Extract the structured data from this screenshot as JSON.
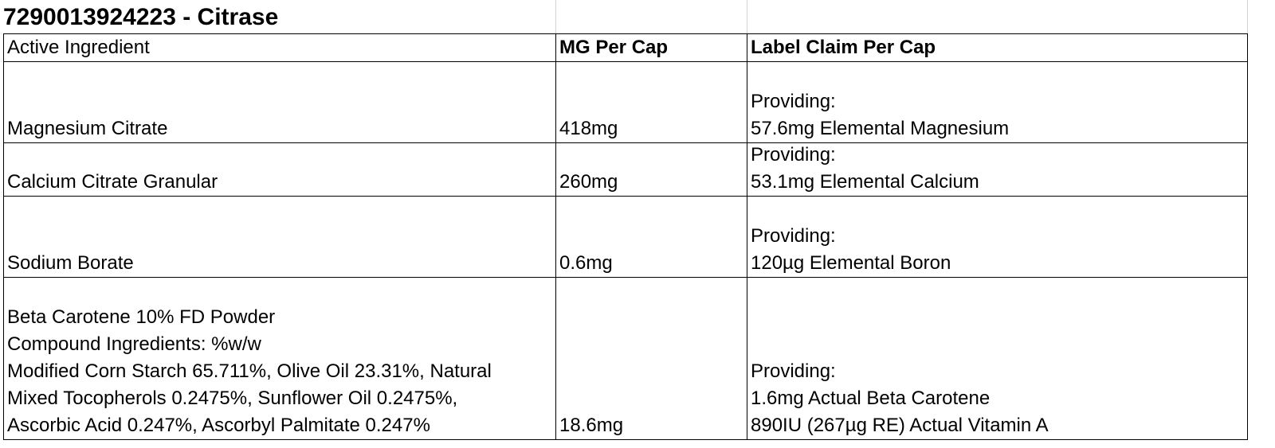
{
  "title": "7290013924223 - Citrase",
  "table": {
    "header": [
      "Active Ingredient",
      "MG Per Cap",
      "Label Claim Per Cap"
    ],
    "rows": [
      [
        [
          "Magnesium Citrate"
        ],
        [
          "418mg"
        ],
        [
          "Providing:",
          "57.6mg Elemental Magnesium"
        ]
      ],
      [
        [
          "Calcium Citrate Granular"
        ],
        [
          "260mg"
        ],
        [
          "Providing:",
          "53.1mg Elemental Calcium"
        ]
      ],
      [
        [
          "Sodium Borate"
        ],
        [
          "0.6mg"
        ],
        [
          "Providing:",
          "120µg Elemental Boron"
        ]
      ],
      [
        [
          "Beta Carotene 10% FD Powder",
          "Compound Ingredients: %w/w",
          "Modified Corn Starch 65.711%, Olive Oil 23.31%, Natural",
          "Mixed Tocopherols 0.2475%, Sunflower Oil 0.2475%,",
          "Ascorbic Acid 0.247%, Ascorbyl Palmitate 0.247%"
        ],
        [
          "18.6mg"
        ],
        [
          "Providing:",
          "1.6mg Actual Beta Carotene",
          "890IU (267µg RE) Actual Vitamin A"
        ]
      ]
    ]
  }
}
